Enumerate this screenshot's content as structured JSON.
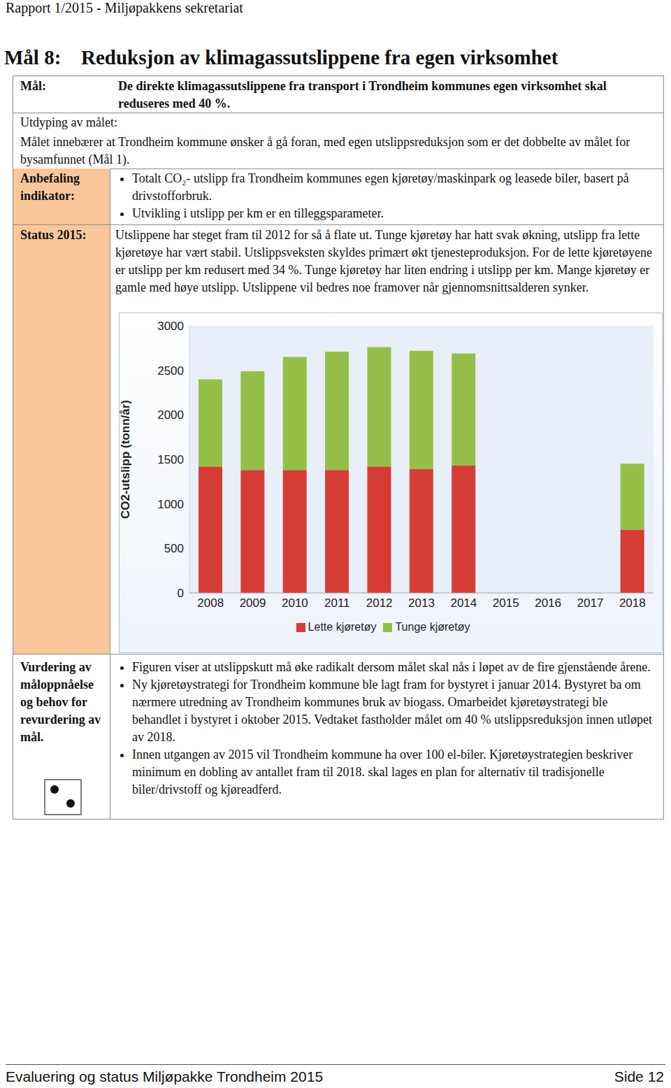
{
  "header": "Rapport 1/2015 - Miljøpakkens sekretariat",
  "title": {
    "number": "Mål 8:",
    "text": "Reduksjon av klimagassutslippene fra egen virksomhet"
  },
  "table": {
    "goal": {
      "label": "Mål:",
      "text": "De direkte klimagassutslippene fra transport i Trondheim kommunes egen virksomhet skal reduseres med 40 %."
    },
    "elaboration": {
      "label": "Utdyping av målet:",
      "text": "Målet innebærer at Trondheim kommune ønsker å gå foran, med egen utslippsreduksjon som er det dobbelte av målet for bysamfunnet (Mål 1)."
    },
    "indicator": {
      "label": "Anbefaling indikator:",
      "items": [
        "Totalt CO₂- utslipp fra Trondheim kommunes egen kjøretøy/maskinpark og leasede biler, basert på drivstofforbruk.",
        "Utvikling i utslipp per km er en tilleggsparameter."
      ]
    },
    "status": {
      "label": "Status 2015:",
      "text": "Utslippene har steget fram til 2012 for så å flate ut. Tunge kjøretøy har hatt svak økning, utslipp fra lette kjøretøye har vært stabil. Utslippsveksten skyldes primært økt tjenesteproduksjon. For de lette kjøretøyene er utslipp per km redusert med 34 %. Tunge kjøretøy har liten endring i utslipp per km. Mange kjøretøy er gamle med høye utslipp. Utslippene vil bedres noe framover når gjennomsnittsalderen synker."
    },
    "assessment": {
      "label": "Vurdering av måloppnåelse og behov for revurdering av mål.",
      "items": [
        "Figuren viser at utslippskutt må øke radikalt dersom målet skal nås i løpet av de fire gjenstående årene.",
        "Ny kjøretøystrategi for Trondheim kommune ble lagt fram for bystyret i januar 2014. Bystyret ba om nærmere utredning av Trondheim kommunes bruk av biogass. Omarbeidet kjøretøystrategi ble behandlet i bystyret i oktober 2015. Vedtaket fastholder målet om 40 % utslippsreduksjon innen utløpet av 2018.",
        "Innen utgangen av 2015 vil Trondheim kommune ha over 100 el-biler. Kjøretøystrategien beskriver minimum en dobling av antallet fram til 2018. skal lages en plan for alternativ til tradisjonelle biler/drivstoff og kjøreadferd."
      ]
    }
  },
  "chart_data": {
    "type": "bar",
    "stacked": true,
    "ylabel": "CO2-utslipp (tonn/år)",
    "categories": [
      "2008",
      "2009",
      "2010",
      "2011",
      "2012",
      "2013",
      "2014",
      "2015",
      "2016",
      "2017",
      "2018"
    ],
    "series": [
      {
        "name": "Lette kjøretøy",
        "color": "#d63c36",
        "values": [
          1420,
          1380,
          1380,
          1380,
          1420,
          1390,
          1430,
          null,
          null,
          null,
          710
        ]
      },
      {
        "name": "Tunge kjøretøy",
        "color": "#94c047",
        "values": [
          980,
          1110,
          1270,
          1330,
          1340,
          1330,
          1260,
          null,
          null,
          null,
          740
        ]
      }
    ],
    "ylim": [
      0,
      3000
    ],
    "yticks": [
      0,
      500,
      1000,
      1500,
      2000,
      2500,
      3000
    ],
    "grid": false,
    "legend": "bottom"
  },
  "footer": {
    "left": "Evaluering og status Miljøpakke Trondheim 2015",
    "right": "Side 12"
  }
}
